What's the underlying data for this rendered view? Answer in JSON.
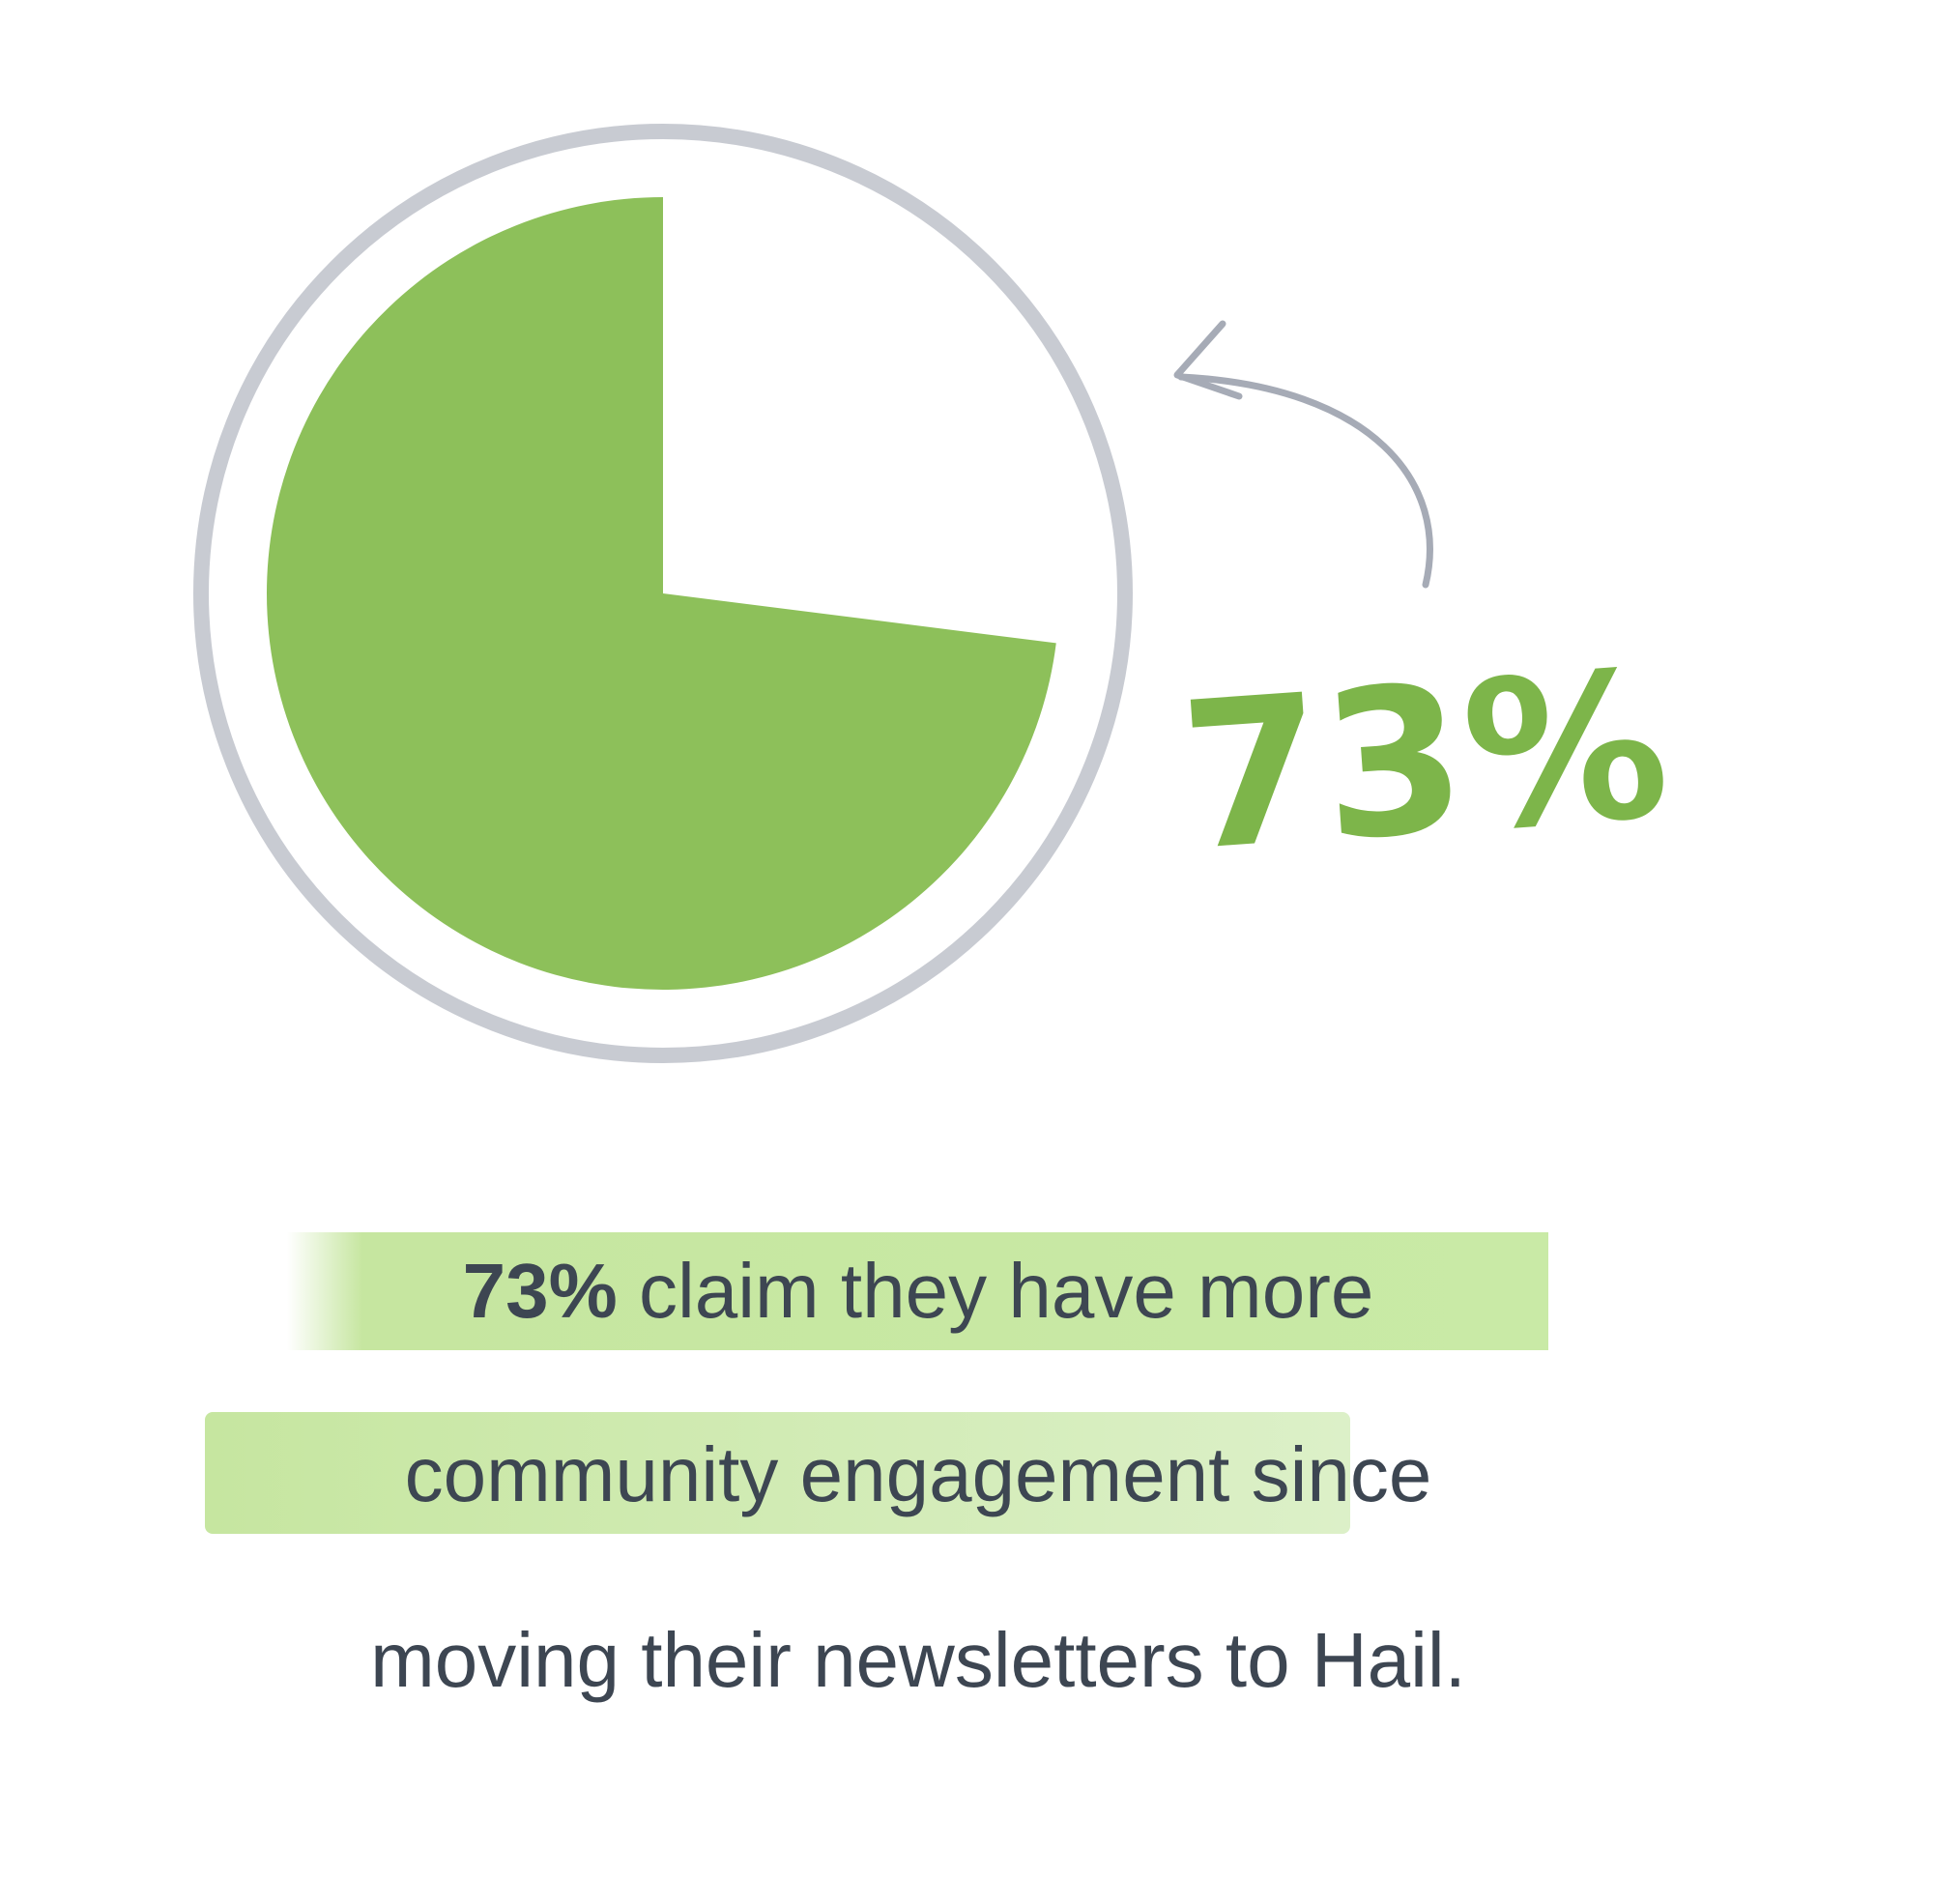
{
  "chart_data": {
    "type": "pie",
    "values": [
      73
    ],
    "value_labels": [
      "73%"
    ],
    "color": "#8dc05a",
    "label_color": "#7db54a",
    "ring_color": "#c8cbd2",
    "caption": {
      "bold": "73%",
      "line1": " claim they have more",
      "line2_highlight": "community engagement",
      "line2_rest": " since",
      "line3": "moving their newsletters to Hail."
    }
  }
}
